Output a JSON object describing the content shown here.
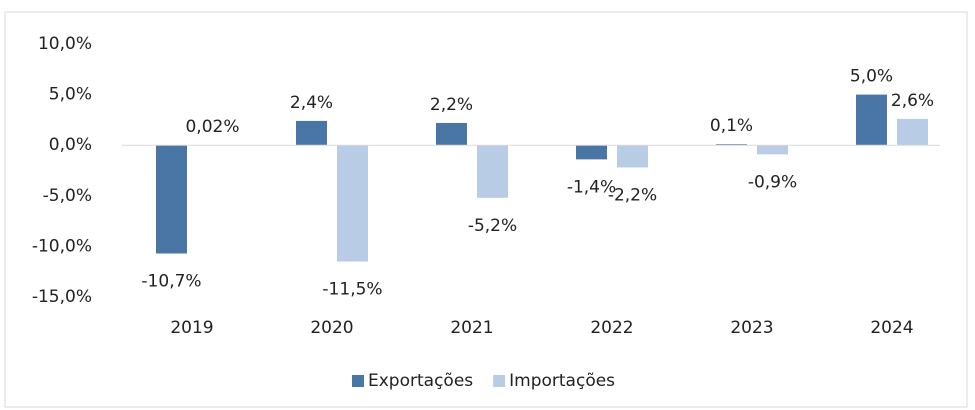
{
  "chart_data": {
    "type": "bar",
    "categories": [
      "2019",
      "2020",
      "2021",
      "2022",
      "2023",
      "2024"
    ],
    "series": [
      {
        "name": "Exportações",
        "color": "#4a76a6",
        "values": [
          -10.7,
          2.4,
          2.2,
          -1.4,
          0.1,
          5.0
        ],
        "value_labels": [
          "-10,7%",
          "2,4%",
          "2,2%",
          "-1,4%",
          "0,1%",
          "5,0%"
        ]
      },
      {
        "name": "Importações",
        "color": "#b8cce6",
        "values": [
          0.02,
          -11.5,
          -5.2,
          -2.2,
          -0.9,
          2.6
        ],
        "value_labels": [
          "0,02%",
          "-11,5%",
          "-5,2%",
          "-2,2%",
          "-0,9%",
          "2,6%"
        ]
      }
    ],
    "ylim": [
      -15,
      10
    ],
    "yticks": [
      {
        "value": -15,
        "label": "-15,0%"
      },
      {
        "value": -10,
        "label": "-10,0%"
      },
      {
        "value": -5,
        "label": "-5,0%"
      },
      {
        "value": 0,
        "label": "0,0%"
      },
      {
        "value": 5,
        "label": "5,0%"
      },
      {
        "value": 10,
        "label": "10,0%"
      }
    ],
    "grid": false,
    "legend": "bottom"
  }
}
